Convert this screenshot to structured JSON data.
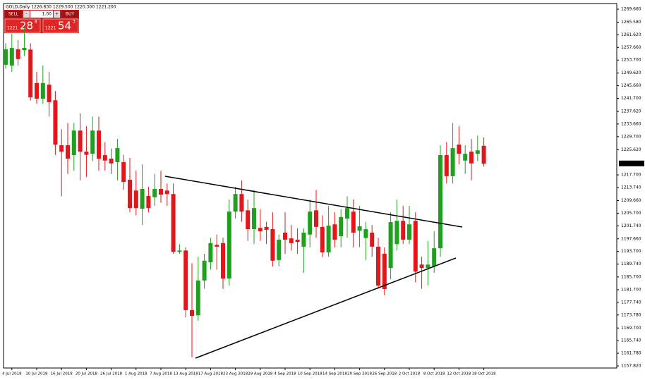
{
  "chart_data": {
    "type": "candlestick",
    "title": "GOLD,Daily 1226.830 1229.500 1220.300 1221.200",
    "categories": [
      null,
      "4 Jul 2018",
      null,
      null,
      null,
      "10 Jul 2018",
      null,
      null,
      null,
      "16 Jul 2018",
      null,
      null,
      null,
      "20 Jul 2018",
      null,
      null,
      null,
      "26 Jul 2018",
      null,
      null,
      null,
      "1 Aug 2018",
      null,
      null,
      null,
      "7 Aug 2018",
      null,
      null,
      null,
      "13 Aug 2018",
      null,
      null,
      null,
      "17 Aug 2018",
      null,
      null,
      null,
      "23 Aug 2018",
      null,
      null,
      null,
      "29 Aug 2018",
      null,
      null,
      null,
      "4 Sep 2018",
      null,
      null,
      null,
      "10 Sep 2018",
      null,
      null,
      null,
      "14 Sep 2018",
      null,
      null,
      null,
      "20 Sep 2018",
      null,
      null,
      null,
      "26 Sep 2018",
      null,
      null,
      null,
      "2 Oct 2018",
      null,
      null,
      null,
      "8 Oct 2018",
      null,
      null,
      null,
      "12 Oct 2018",
      null,
      null,
      null,
      "18 Oct 2018"
    ],
    "open": [
      1252.2,
      1252,
      1257.1,
      1256.8,
      1257,
      1246.5,
      1241.6,
      1246,
      1241.1,
      1227,
      1227,
      1223.9,
      1231.6,
      1225,
      1224.3,
      1231.6,
      1223.9,
      1222.8,
      1221.7,
      1221.7,
      1216.2,
      1212.8,
      1207.1,
      1211.1,
      1210.7,
      1213.3,
      1212.8,
      1211.7,
      1193.6,
      1194,
      1175.3,
      1173.7,
      1184.6,
      1190.3,
      1195.8,
      1196.3,
      1185.2,
      1206.2,
      1211.7,
      1206.6,
      1200.7,
      1201.1,
      1201.4,
      1200.7,
      1191,
      1199.6,
      1197.8,
      1197.4,
      1195.2,
      1199,
      1206.6,
      1201.4,
      1193.4,
      1202.2,
      1198.5,
      1204,
      1206.2,
      1200.2,
      1197.9,
      1199.6,
      1195.2,
      1193,
      1188.5,
      1196,
      1203.3,
      1197.4,
      1203.3,
      1189.6,
      1188.5,
      1189,
      1194.7,
      1223.9,
      1217.3,
      1227.2,
      1222.2,
      1225,
      1224.3,
      1226.83
    ],
    "high": [
      1259,
      1262,
      1260,
      1264,
      1259,
      1250,
      1252,
      1250,
      1244,
      1232,
      1234,
      1234,
      1237,
      1233,
      1236,
      1236,
      1228,
      1226,
      1229,
      1224,
      1223,
      1219,
      1221,
      1214,
      1218,
      1219,
      1215,
      1215,
      1196,
      1195,
      1190,
      1192,
      1193,
      1198,
      1199,
      1198,
      1210,
      1214,
      1216,
      1210,
      1213,
      1207,
      1203,
      1206,
      1199,
      1206,
      1202,
      1201,
      1201,
      1210,
      1213,
      1205,
      1208,
      1206,
      1207,
      1211,
      1210,
      1208,
      1203,
      1202,
      1198,
      1195,
      1206,
      1210,
      1208,
      1208,
      1206,
      1192,
      1197,
      1200,
      1227,
      1228,
      1234,
      1233,
      1227,
      1229,
      1230,
      1229.5
    ],
    "low": [
      1251,
      1250,
      1252,
      1255,
      1241,
      1240,
      1240,
      1236,
      1224,
      1211,
      1218,
      1219,
      1216,
      1217,
      1222,
      1219,
      1219,
      1218,
      1216,
      1213,
      1206,
      1205,
      1202,
      1206,
      1208,
      1209,
      1208,
      1193,
      1193,
      1173,
      1160.5,
      1172,
      1182,
      1188,
      1188,
      1182,
      1183,
      1204,
      1203,
      1197,
      1196,
      1197,
      1196,
      1189,
      1189,
      1193,
      1194,
      1193,
      1187,
      1195,
      1198,
      1192,
      1192,
      1195,
      1195,
      1198,
      1195,
      1195,
      1191,
      1192,
      1182,
      1180,
      1185,
      1194,
      1196,
      1196,
      1184,
      1182,
      1183,
      1187,
      1192,
      1215,
      1215,
      1221,
      1218,
      1216,
      1222,
      1220.3
    ],
    "close": [
      1257.1,
      1257.5,
      1254,
      1257.5,
      1242,
      1241.6,
      1246.5,
      1240.5,
      1227.2,
      1225,
      1222.8,
      1231.6,
      1225,
      1224,
      1231.6,
      1222.8,
      1222.2,
      1221.3,
      1226.1,
      1215.5,
      1207.3,
      1207.3,
      1213.3,
      1207.3,
      1213.3,
      1211.5,
      1211.7,
      1193.6,
      1194,
      1175.3,
      1173.5,
      1184.6,
      1190.8,
      1196.3,
      1195.2,
      1185.2,
      1206.2,
      1211.7,
      1206.2,
      1200.7,
      1207.3,
      1200,
      1200.5,
      1190.8,
      1197.4,
      1197.4,
      1196.3,
      1196.7,
      1199.6,
      1206.2,
      1201.4,
      1193.4,
      1201.8,
      1197.4,
      1204.5,
      1207.3,
      1199.6,
      1201.6,
      1200.7,
      1195.2,
      1183,
      1181.9,
      1202.9,
      1203.3,
      1197.4,
      1202.2,
      1187.4,
      1188.5,
      1189.6,
      1194.7,
      1223.9,
      1217.3,
      1226.1,
      1224.3,
      1224.3,
      1221.3,
      1225.4,
      1221.2
    ],
    "up_color": "#1fa01f",
    "down_color": "#e3161b",
    "ylim": [
      1157.16,
      1271.43
    ],
    "yticks": [
      {
        "value": 1269.66,
        "label": "1269.660"
      },
      {
        "value": 1265.58,
        "label": "1265.580"
      },
      {
        "value": 1261.62,
        "label": "1261.620"
      },
      {
        "value": 1257.66,
        "label": "1257.660"
      },
      {
        "value": 1253.7,
        "label": "1253.700"
      },
      {
        "value": 1249.62,
        "label": "1249.620"
      },
      {
        "value": 1245.66,
        "label": "1245.660"
      },
      {
        "value": 1241.7,
        "label": "1241.700"
      },
      {
        "value": 1237.62,
        "label": "1237.620"
      },
      {
        "value": 1233.66,
        "label": "1233.660"
      },
      {
        "value": 1229.7,
        "label": "1229.700"
      },
      {
        "value": 1225.62,
        "label": "1225.620"
      },
      {
        "value": 1217.7,
        "label": "1217.700"
      },
      {
        "value": 1213.74,
        "label": "1213.740"
      },
      {
        "value": 1209.66,
        "label": "1209.660"
      },
      {
        "value": 1205.7,
        "label": "1205.700"
      },
      {
        "value": 1201.74,
        "label": "1201.740"
      },
      {
        "value": 1197.66,
        "label": "1197.660"
      },
      {
        "value": 1193.7,
        "label": "1193.700"
      },
      {
        "value": 1189.74,
        "label": "1189.740"
      },
      {
        "value": 1185.7,
        "label": "1185.700"
      },
      {
        "value": 1181.7,
        "label": "1181.700"
      },
      {
        "value": 1177.74,
        "label": "1177.740"
      },
      {
        "value": 1173.78,
        "label": "1173.780"
      },
      {
        "value": 1169.7,
        "label": "1169.700"
      },
      {
        "value": 1165.74,
        "label": "1165.740"
      },
      {
        "value": 1161.78,
        "label": "1161.780"
      },
      {
        "value": 1157.82,
        "label": "1157.820"
      }
    ],
    "last_price": {
      "value": 1221.3,
      "label": "1221.300"
    },
    "trade_panel": {
      "sell": "SELL",
      "buy": "BUY",
      "minus": "-",
      "plus": "+",
      "volume": "1.00",
      "sell_price": {
        "base": "1221",
        "pips": "28",
        "fraction": "8"
      },
      "buy_price": {
        "base": "1221",
        "pips": "54",
        "fraction": "3"
      }
    }
  }
}
